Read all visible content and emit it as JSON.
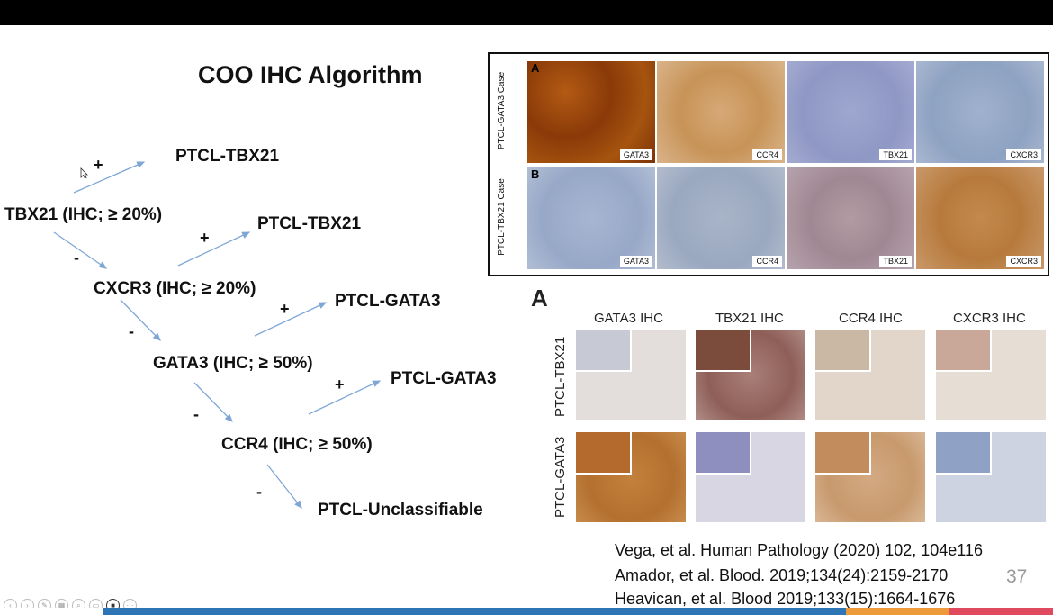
{
  "title": "COO IHC Algorithm",
  "flow": {
    "nodes": [
      "TBX21 (IHC; ≥ 20%)",
      "CXCR3 (IHC; ≥ 20%)",
      "GATA3 (IHC; ≥ 50%)",
      "CCR4 (IHC; ≥ 50%)"
    ],
    "outcomes": [
      "PTCL-TBX21",
      "PTCL-TBX21",
      "PTCL-GATA3",
      "PTCL-GATA3",
      "PTCL-Unclassifiable"
    ],
    "plus": "+",
    "minus": "-"
  },
  "panel_top": {
    "row_a": {
      "letter": "A",
      "label": "PTCL-GATA3 Case",
      "stains": [
        "GATA3",
        "CCR4",
        "TBX21",
        "CXCR3"
      ]
    },
    "row_b": {
      "letter": "B",
      "label": "PTCL-TBX21 Case",
      "stains": [
        "GATA3",
        "CCR4",
        "TBX21",
        "CXCR3"
      ]
    }
  },
  "panel_bottom": {
    "letter": "A",
    "columns": [
      "GATA3 IHC",
      "TBX21 IHC",
      "CCR4 IHC",
      "CXCR3 IHC"
    ],
    "rows": [
      "PTCL-TBX21",
      "PTCL-GATA3"
    ]
  },
  "references": [
    "Vega, et al. Human Pathology (2020) 102, 104e116",
    "Amador, et al. Blood. 2019;134(24):2159-2170",
    "Heavican, et al. Blood 2019;133(15):1664-1676"
  ],
  "page_number": "37",
  "colors": {
    "arrow": "#7fa7d6",
    "brown_stain": "#9a4a12",
    "blue_stain": "#8fa2c6",
    "bar_blue": "#2e75b6",
    "bar_orange": "#ed9b3a",
    "bar_red": "#e04a5f"
  }
}
